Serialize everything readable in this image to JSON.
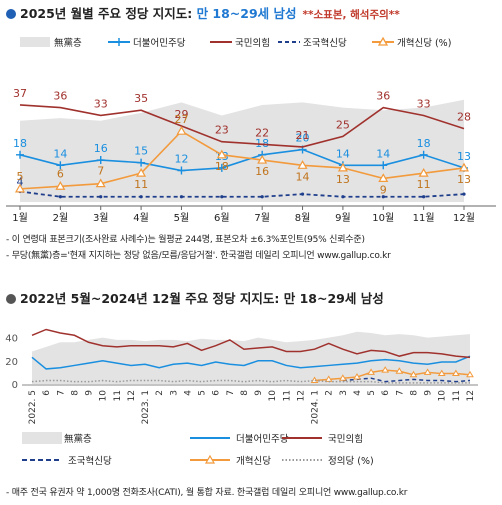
{
  "top": {
    "title_prefix": "2025년 월별 주요 정당 지지도: ",
    "title_highlight": "만 18~29세 남성",
    "note": "**소표본, 해석주의**",
    "footnote1": "- 이 연령대 표본크기(조사완료 사례수)는 월평균 244명, 표본오차 ±6.3%포인트(95% 신뢰수준)",
    "footnote2": "- 무당(無黨)층='현재 지지하는 정당 없음/모름/응답거절'. 한국갤럽 데일리 오피니언 www.gallup.co.kr"
  },
  "bottom": {
    "title": "2022년 5월~2024년 12월 주요 정당 지지도: 만 18~29세 남성",
    "footnote": "- 매주 전국 유권자 약 1,000명 전화조사(CATI), 월 통합 자료. 한국갤럽 데일리 오피니언 www.gallup.co.kr"
  },
  "colors": {
    "none": "#e3e3e3",
    "minju": "#1a8fe0",
    "gukmin": "#a0322e",
    "joguk": "#1f3f8c",
    "gaehyuk": "#f29a3c",
    "jeongui": "#999999"
  },
  "chart_data": [
    {
      "type": "line",
      "categories": [
        "1월",
        "2월",
        "3월",
        "4월",
        "5월",
        "6월",
        "7월",
        "8월",
        "9월",
        "10월",
        "11월",
        "12월"
      ],
      "ylim": [
        0,
        45
      ],
      "legend_position": "top",
      "series": [
        {
          "name": "無黨층",
          "kind": "area",
          "color_key": "none",
          "values": [
            31,
            32,
            31,
            34,
            38,
            33,
            37,
            38,
            36,
            35,
            36,
            39
          ]
        },
        {
          "name": "더불어민주당",
          "color_key": "minju",
          "values": [
            18,
            14,
            16,
            15,
            12,
            13,
            18,
            20,
            14,
            14,
            18,
            13
          ]
        },
        {
          "name": "국민의힘",
          "color_key": "gukmin",
          "values": [
            37,
            36,
            33,
            35,
            29,
            23,
            22,
            21,
            25,
            36,
            33,
            28
          ]
        },
        {
          "name": "조국혁신당",
          "color_key": "joguk",
          "dashed": true,
          "values": [
            4,
            2,
            2,
            2,
            2,
            2,
            2,
            3,
            2,
            2,
            2,
            3
          ],
          "labels": [
            "4",
            "",
            "",
            "",
            "",
            "",
            "",
            "",
            "",
            "",
            "",
            ""
          ]
        },
        {
          "name": "개혁신당 (%)",
          "color_key": "gaehyuk",
          "values": [
            5,
            6,
            7,
            11,
            27,
            18,
            16,
            14,
            13,
            9,
            11,
            13
          ]
        }
      ]
    },
    {
      "type": "line",
      "x_tick_labels": [
        "2022. 5",
        "6",
        "7",
        "8",
        "9",
        "10",
        "11",
        "12",
        "2023. 1",
        "2",
        "3",
        "4",
        "5",
        "6",
        "7",
        "8",
        "9",
        "10",
        "11",
        "12",
        "2024. 1",
        "2",
        "3",
        "4",
        "5",
        "6",
        "7",
        "8",
        "9",
        "10",
        "11",
        "12"
      ],
      "y_ticks": [
        "0",
        "20",
        "40"
      ],
      "ylim": [
        0,
        50
      ],
      "legend_position": "bottom",
      "series": [
        {
          "name": "無黨층",
          "kind": "area",
          "color_key": "none",
          "values": [
            28,
            32,
            36,
            36,
            38,
            40,
            38,
            38,
            37,
            38,
            38,
            37,
            39,
            38,
            38,
            37,
            40,
            38,
            36,
            37,
            38,
            40,
            42,
            45,
            44,
            42,
            43,
            42,
            40,
            41,
            42,
            43
          ]
        },
        {
          "name": "더불어민주당",
          "color_key": "minju",
          "values": [
            23,
            13,
            14,
            16,
            18,
            20,
            18,
            16,
            17,
            14,
            17,
            18,
            16,
            19,
            17,
            16,
            20,
            20,
            16,
            14,
            15,
            16,
            17,
            18,
            20,
            21,
            20,
            18,
            17,
            19,
            19,
            24
          ]
        },
        {
          "name": "국민의힘",
          "color_key": "gukmin",
          "values": [
            42,
            47,
            44,
            42,
            36,
            33,
            32,
            33,
            33,
            33,
            32,
            35,
            29,
            33,
            38,
            30,
            31,
            32,
            28,
            28,
            30,
            35,
            30,
            26,
            29,
            28,
            24,
            27,
            27,
            26,
            24,
            23
          ]
        },
        {
          "name": "조국혁신당",
          "color_key": "joguk",
          "dashed": true,
          "start": 22,
          "values": [
            3,
            4,
            5,
            2,
            3,
            4,
            3,
            3,
            2,
            3
          ]
        },
        {
          "name": "개혁신당",
          "color_key": "gaehyuk",
          "start": 20,
          "values": [
            3,
            4,
            5,
            6,
            10,
            12,
            11,
            8,
            10,
            9,
            9,
            8
          ]
        },
        {
          "name": "정의당 (%)",
          "color_key": "jeongui",
          "dotted": true,
          "values": [
            2,
            3,
            3,
            2,
            2,
            3,
            2,
            3,
            3,
            3,
            2,
            3,
            2,
            3,
            3,
            2,
            3,
            2,
            3,
            2,
            3,
            2,
            2,
            2,
            2,
            1,
            1,
            1,
            1,
            1,
            1,
            1
          ]
        }
      ]
    }
  ]
}
